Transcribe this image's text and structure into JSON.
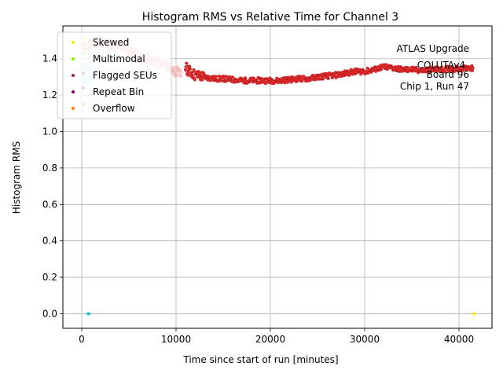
{
  "chart_data": {
    "type": "scatter",
    "title": "Histogram RMS vs Relative Time for Channel 3",
    "xlabel": "Time since start of run [minutes]",
    "ylabel": "Histogram RMS",
    "xlim": [
      -2000,
      43500
    ],
    "ylim": [
      -0.08,
      1.58
    ],
    "xticks": [
      0,
      10000,
      20000,
      30000,
      40000
    ],
    "yticks": [
      0.0,
      0.2,
      0.4,
      0.6,
      0.8,
      1.0,
      1.2,
      1.4
    ],
    "grid": true,
    "legend_position": "top-left",
    "annotation": [
      "ATLAS Upgrade",
      "COLUTAv4",
      "Board 96",
      "Chip 1, Run 47"
    ],
    "colors": {
      "normal": "#d62728",
      "skewed": "#ffeb00",
      "multimodal": "#7fff00",
      "flagged_seus": "#b22222",
      "repeat_bin": "#800080",
      "overflow": "#ff7f0e",
      "low_cluster": "#17becf"
    },
    "series": [
      {
        "name": "Skewed",
        "color": "#ffeb00",
        "points": [
          [
            150,
            1.51
          ],
          [
            41600,
            0.0
          ]
        ]
      },
      {
        "name": "Multimodal",
        "color": "#7fff00",
        "points": [
          [
            200,
            1.43
          ]
        ]
      },
      {
        "name": "Flagged SEUs",
        "color": "#b22222",
        "points": [
          [
            180,
            1.32
          ]
        ]
      },
      {
        "name": "Repeat Bin",
        "color": "#800080",
        "points": [
          [
            150,
            1.24
          ]
        ]
      },
      {
        "name": "Overflow",
        "color": "#ff7f0e",
        "points": [
          [
            160,
            1.15
          ]
        ]
      }
    ],
    "main_trend": {
      "x": [
        11000,
        11500,
        12000,
        13000,
        14000,
        15000,
        16000,
        17000,
        18000,
        19000,
        20000,
        21000,
        22000,
        23000,
        24000,
        25000,
        26000,
        27000,
        28000,
        29000,
        30000,
        31000,
        32000,
        33000,
        34000,
        35000,
        36000,
        37000,
        38000,
        39000,
        40000,
        41000,
        41500
      ],
      "y": [
        1.35,
        1.33,
        1.31,
        1.3,
        1.29,
        1.29,
        1.285,
        1.28,
        1.28,
        1.28,
        1.28,
        1.28,
        1.285,
        1.29,
        1.29,
        1.3,
        1.305,
        1.31,
        1.32,
        1.33,
        1.33,
        1.34,
        1.355,
        1.35,
        1.34,
        1.34,
        1.335,
        1.34,
        1.34,
        1.345,
        1.345,
        1.35,
        1.345
      ]
    },
    "early_trend": {
      "x": [
        200,
        1000,
        2000,
        3000,
        4000,
        5000,
        6000,
        7000,
        8000,
        9000,
        10000,
        10500
      ],
      "y": [
        1.46,
        1.48,
        1.5,
        1.48,
        1.46,
        1.44,
        1.42,
        1.4,
        1.38,
        1.36,
        1.33,
        1.31
      ]
    },
    "low_cluster": {
      "x": [
        700,
        720,
        740
      ],
      "y": [
        0.0,
        0.0,
        0.0
      ]
    }
  }
}
